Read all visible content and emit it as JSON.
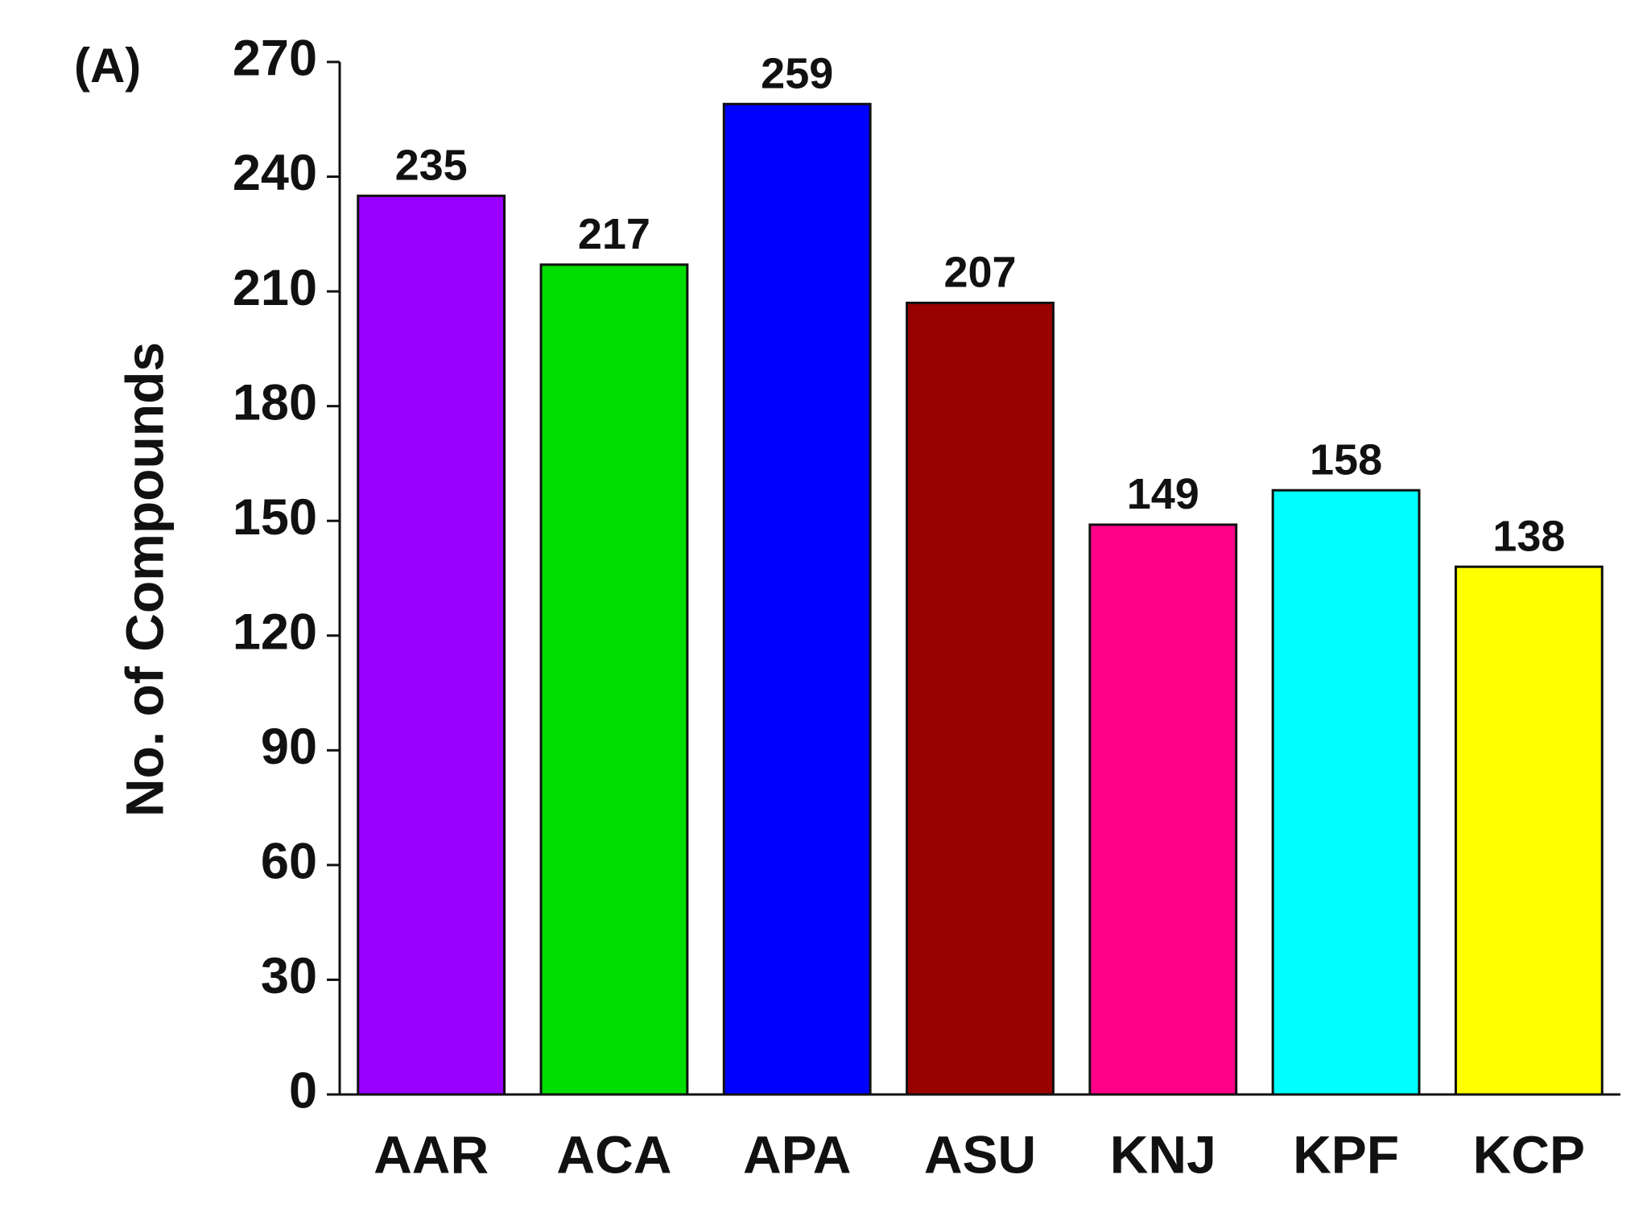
{
  "chart_data": {
    "type": "bar",
    "annotation": "(A)",
    "y_label": "No. of Compounds",
    "categories": [
      "AAR",
      "ACA",
      "APA",
      "ASU",
      "KNJ",
      "KPF",
      "KCP"
    ],
    "values": [
      235,
      217,
      259,
      207,
      149,
      158,
      138
    ],
    "colors": [
      "#9900ff",
      "#00dd00",
      "#0000ff",
      "#990000",
      "#ff0088",
      "#00ffff",
      "#ffff00"
    ],
    "ylim": [
      0,
      270
    ],
    "yticks": [
      0,
      30,
      60,
      90,
      120,
      150,
      180,
      210,
      240,
      270
    ],
    "grid": false
  }
}
